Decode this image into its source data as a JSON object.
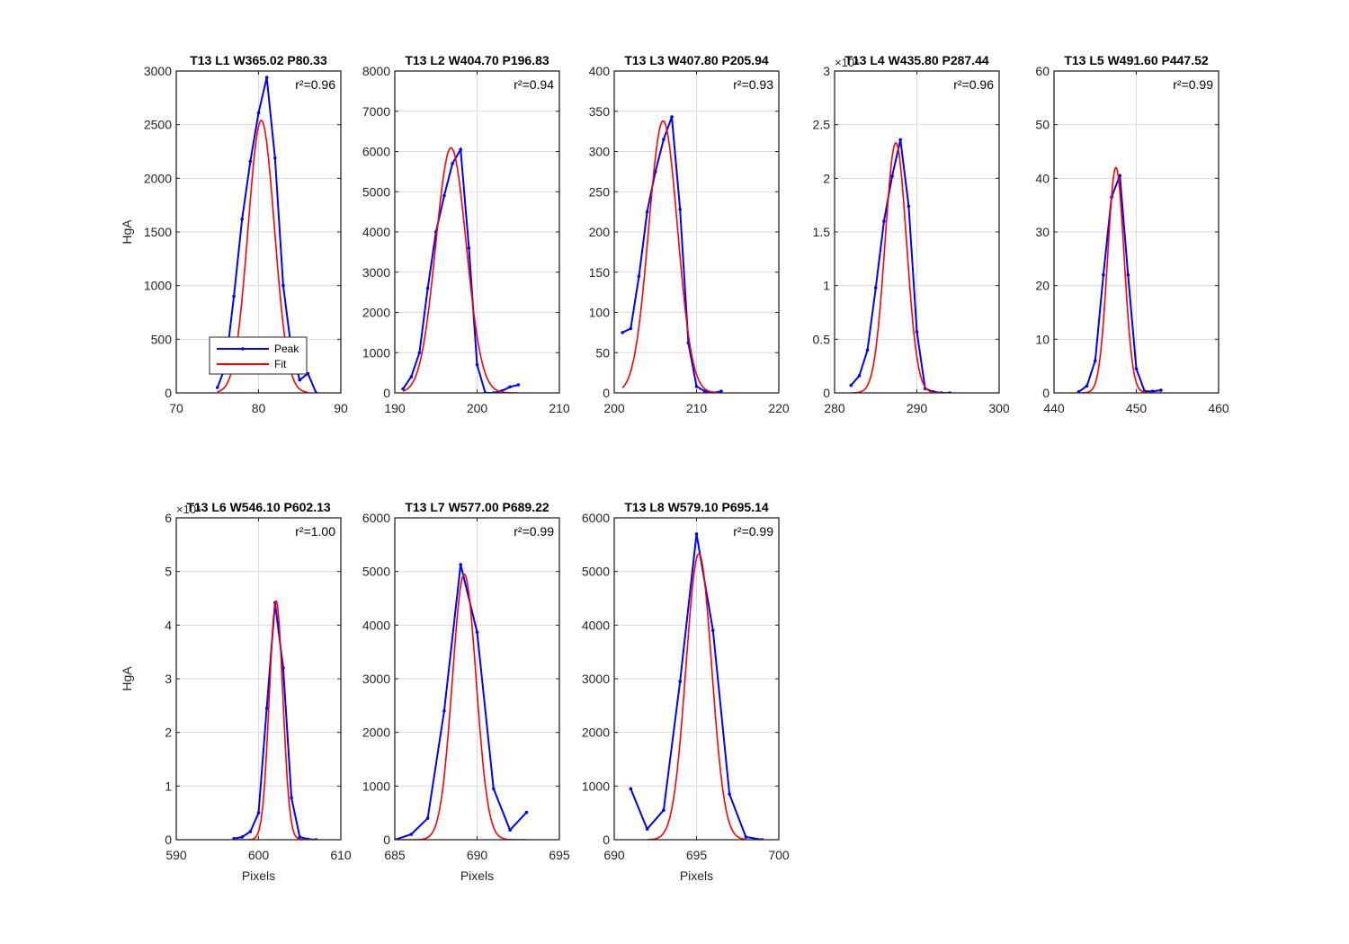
{
  "chart_data": [
    {
      "type": "line",
      "title": "T13 L1 W365.02 P80.33",
      "r2": "r²=0.96",
      "xlabel": "",
      "ylabel": "HgA",
      "xlim": [
        70,
        90
      ],
      "ylim": [
        0,
        3000
      ],
      "xticks": [
        "70",
        "80",
        "90"
      ],
      "yticks": [
        "0",
        "500",
        "1000",
        "1500",
        "2000",
        "2500",
        "3000"
      ],
      "exponent": "",
      "vline": 80.33,
      "legend": {
        "position": "lower-left",
        "entries": [
          "Peak",
          "Fit"
        ]
      },
      "peak": {
        "name": "Peak",
        "color": "#0000ff",
        "x": [
          75,
          76,
          77,
          78,
          79,
          80,
          81,
          82,
          83,
          84,
          85,
          86,
          87
        ],
        "y": [
          50,
          250,
          900,
          1620,
          2160,
          2610,
          2940,
          2190,
          1000,
          400,
          120,
          180,
          0
        ]
      },
      "fit": {
        "name": "Fit",
        "color": "#ff0000",
        "mu": 80.33,
        "sigma": 1.6,
        "amp": 2540,
        "range": [
          75,
          86
        ]
      }
    },
    {
      "type": "line",
      "title": "T13 L2 W404.70 P196.83",
      "r2": "r²=0.94",
      "xlabel": "",
      "ylabel": "",
      "xlim": [
        190,
        210
      ],
      "ylim": [
        0,
        8000
      ],
      "xticks": [
        "190",
        "200",
        "210"
      ],
      "yticks": [
        "0",
        "1000",
        "2000",
        "3000",
        "4000",
        "5000",
        "6000",
        "7000",
        "8000"
      ],
      "exponent": "",
      "vline": 200,
      "peak": {
        "name": "Peak",
        "color": "#0000ff",
        "x": [
          191,
          192,
          193,
          194,
          195,
          196,
          197,
          198,
          199,
          200,
          201,
          202,
          203,
          204,
          205
        ],
        "y": [
          100,
          400,
          1000,
          2600,
          4000,
          4900,
          5700,
          6050,
          3600,
          700,
          0,
          0,
          50,
          150,
          200
        ]
      },
      "fit": {
        "name": "Fit",
        "color": "#ff0000",
        "mu": 196.83,
        "sigma": 1.85,
        "amp": 6090,
        "range": [
          191,
          205
        ]
      }
    },
    {
      "type": "line",
      "title": "T13 L3 W407.80 P205.94",
      "r2": "r²=0.93",
      "xlabel": "",
      "ylabel": "",
      "xlim": [
        200,
        220
      ],
      "ylim": [
        0,
        400
      ],
      "xticks": [
        "200",
        "210",
        "220"
      ],
      "yticks": [
        "0",
        "50",
        "100",
        "150",
        "200",
        "250",
        "300",
        "350",
        "400"
      ],
      "exponent": "",
      "vline": 210,
      "peak": {
        "name": "Peak",
        "color": "#0000ff",
        "x": [
          201,
          202,
          203,
          204,
          205,
          206,
          207,
          208,
          209,
          210,
          211,
          212,
          213
        ],
        "y": [
          75,
          80,
          145,
          225,
          275,
          315,
          343,
          228,
          62,
          8,
          2,
          0,
          2
        ]
      },
      "fit": {
        "name": "Fit",
        "color": "#ff0000",
        "mu": 205.94,
        "sigma": 1.75,
        "amp": 338,
        "range": [
          201,
          213
        ]
      }
    },
    {
      "type": "line",
      "title": "T13 L4 W435.80 P287.44",
      "r2": "r²=0.96",
      "xlabel": "",
      "ylabel": "",
      "xlim": [
        280,
        300
      ],
      "ylim": [
        0,
        3
      ],
      "xticks": [
        "280",
        "290",
        "300"
      ],
      "yticks": [
        "0",
        "0.5",
        "1",
        "1.5",
        "2",
        "2.5",
        "3"
      ],
      "exponent": "×10⁴",
      "vline": 290,
      "peak": {
        "name": "Peak",
        "color": "#0000ff",
        "x": [
          282,
          283,
          284,
          285,
          286,
          287,
          288,
          289,
          290,
          291,
          292,
          293,
          294
        ],
        "y": [
          0.07,
          0.16,
          0.4,
          0.98,
          1.6,
          2.02,
          2.36,
          1.74,
          0.57,
          0.04,
          0.01,
          0,
          0
        ]
      },
      "fit": {
        "name": "Fit",
        "color": "#ff0000",
        "mu": 287.44,
        "sigma": 1.3,
        "amp": 2.33,
        "range": [
          282,
          294
        ]
      }
    },
    {
      "type": "line",
      "title": "T13 L5 W491.60 P447.52",
      "r2": "r²=0.99",
      "xlabel": "",
      "ylabel": "",
      "xlim": [
        440,
        460
      ],
      "ylim": [
        0,
        60
      ],
      "xticks": [
        "440",
        "450",
        "460"
      ],
      "yticks": [
        "0",
        "10",
        "20",
        "30",
        "40",
        "50",
        "60"
      ],
      "exponent": "",
      "vline": 450,
      "peak": {
        "name": "Peak",
        "color": "#0000ff",
        "x": [
          443,
          444,
          445,
          446,
          447,
          448,
          449,
          450,
          451,
          452,
          453
        ],
        "y": [
          0.2,
          1.3,
          6,
          22,
          36.5,
          40.5,
          22,
          4.5,
          0.3,
          0.3,
          0.5
        ]
      },
      "fit": {
        "name": "Fit",
        "color": "#ff0000",
        "mu": 447.52,
        "sigma": 1.0,
        "amp": 42,
        "range": [
          443,
          453
        ]
      }
    },
    {
      "type": "line",
      "title": "T13 L6 W546.10 P602.13",
      "r2": "r²=1.00",
      "xlabel": "Pixels",
      "ylabel": "HgA",
      "xlim": [
        590,
        610
      ],
      "ylim": [
        0,
        6
      ],
      "xticks": [
        "590",
        "600",
        "610"
      ],
      "yticks": [
        "0",
        "1",
        "2",
        "3",
        "4",
        "5",
        "6"
      ],
      "exponent": "×10⁴",
      "vline": 600,
      "peak": {
        "name": "Peak",
        "color": "#0000ff",
        "x": [
          597,
          598,
          599,
          600,
          601,
          602,
          603,
          604,
          605,
          606,
          607
        ],
        "y": [
          0.02,
          0.05,
          0.15,
          0.5,
          2.45,
          4.42,
          3.2,
          0.78,
          0.05,
          0.01,
          0
        ]
      },
      "fit": {
        "name": "Fit",
        "color": "#ff0000",
        "mu": 602.13,
        "sigma": 0.82,
        "amp": 4.45,
        "range": [
          597,
          607
        ]
      }
    },
    {
      "type": "line",
      "title": "T13 L7 W577.00 P689.22",
      "r2": "r²=0.99",
      "xlabel": "Pixels",
      "ylabel": "",
      "xlim": [
        685,
        695
      ],
      "ylim": [
        0,
        6000
      ],
      "xticks": [
        "685",
        "690",
        "695"
      ],
      "yticks": [
        "0",
        "1000",
        "2000",
        "3000",
        "4000",
        "5000",
        "6000"
      ],
      "exponent": "",
      "vline": 690,
      "peak": {
        "name": "Peak",
        "color": "#0000ff",
        "x": [
          685,
          686,
          687,
          688,
          689,
          690,
          691,
          692,
          693
        ],
        "y": [
          0,
          100,
          400,
          2400,
          5130,
          3870,
          950,
          180,
          510
        ]
      },
      "fit": {
        "name": "Fit",
        "color": "#ff0000",
        "mu": 689.22,
        "sigma": 0.72,
        "amp": 4950,
        "range": [
          685,
          693
        ]
      }
    },
    {
      "type": "line",
      "title": "T13 L8 W579.10 P695.14",
      "r2": "r²=0.99",
      "xlabel": "Pixels",
      "ylabel": "",
      "xlim": [
        690,
        700
      ],
      "ylim": [
        0,
        6000
      ],
      "xticks": [
        "690",
        "695",
        "700"
      ],
      "yticks": [
        "0",
        "1000",
        "2000",
        "3000",
        "4000",
        "5000",
        "6000"
      ],
      "exponent": "",
      "vline": 695,
      "peak": {
        "name": "Peak",
        "color": "#0000ff",
        "x": [
          691,
          692,
          693,
          694,
          695,
          696,
          697,
          698,
          699
        ],
        "y": [
          950,
          200,
          550,
          2950,
          5700,
          3900,
          850,
          50,
          0
        ]
      },
      "fit": {
        "name": "Fit",
        "color": "#ff0000",
        "mu": 695.14,
        "sigma": 0.78,
        "amp": 5330,
        "range": [
          692,
          698
        ]
      }
    }
  ]
}
